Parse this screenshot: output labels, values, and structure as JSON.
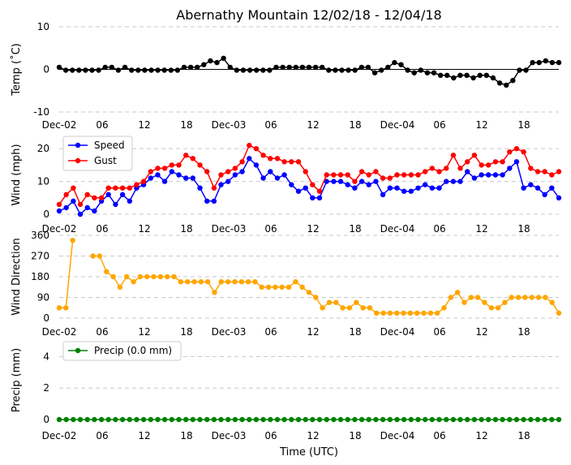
{
  "chart_data": [
    {
      "type": "line",
      "id": "temp",
      "title": "Abernathy Mountain 12/02/18 - 12/04/18",
      "ylabel": "Temp ($^\\circ$C)",
      "ylabel_display": "Temp (˚C)",
      "ylim": [
        -10,
        10
      ],
      "yticks": [
        -10,
        0,
        10
      ],
      "xtick_labels": [
        "Dec-02",
        "06",
        "12",
        "18",
        "Dec-03",
        "06",
        "12",
        "18",
        "Dec-04",
        "06",
        "12",
        "18"
      ],
      "zero_line": true,
      "series": [
        {
          "name": "Temperature",
          "color": "#000000",
          "values": [
            0.5,
            -0.2,
            -0.2,
            -0.2,
            -0.2,
            -0.2,
            -0.2,
            0.5,
            0.5,
            -0.2,
            0.5,
            -0.2,
            -0.2,
            -0.2,
            -0.2,
            -0.2,
            -0.2,
            -0.2,
            -0.2,
            0.5,
            0.5,
            0.5,
            1.1,
            2.0,
            1.6,
            2.6,
            0.5,
            -0.2,
            -0.2,
            -0.2,
            -0.2,
            -0.2,
            -0.2,
            0.5,
            0.5,
            0.5,
            0.5,
            0.5,
            0.5,
            0.5,
            0.5,
            -0.2,
            -0.2,
            -0.2,
            -0.2,
            -0.2,
            0.5,
            0.5,
            -0.8,
            -0.2,
            0.5,
            1.6,
            1.1,
            -0.2,
            -0.8,
            -0.2,
            -0.8,
            -0.8,
            -1.4,
            -1.4,
            -2.0,
            -1.4,
            -1.4,
            -2.0,
            -1.4,
            -1.4,
            -2.0,
            -3.2,
            -3.7,
            -2.6,
            -0.2,
            -0.2,
            1.6,
            1.6,
            2.0,
            1.6,
            1.6
          ]
        }
      ]
    },
    {
      "type": "line",
      "id": "wind",
      "ylabel": "Wind (mph)",
      "ylim": [
        0,
        24
      ],
      "yticks": [
        0,
        10,
        20
      ],
      "xtick_labels": [
        "Dec-02",
        "06",
        "12",
        "18",
        "Dec-03",
        "06",
        "12",
        "18",
        "Dec-04",
        "06",
        "12",
        "18"
      ],
      "legend": "upper-left",
      "series": [
        {
          "name": "Speed",
          "color": "#0000ff",
          "values": [
            1,
            2,
            4,
            0,
            2,
            1,
            4,
            6,
            3,
            6,
            4,
            8,
            9,
            11,
            12,
            10,
            13,
            12,
            11,
            11,
            8,
            4,
            4,
            9,
            10,
            12,
            13,
            17,
            15,
            11,
            13,
            11,
            12,
            9,
            7,
            8,
            5,
            5,
            10,
            10,
            10,
            9,
            8,
            10,
            9,
            10,
            6,
            8,
            8,
            7,
            7,
            8,
            9,
            8,
            8,
            10,
            10,
            10,
            13,
            11,
            12,
            12,
            12,
            12,
            14,
            16,
            8,
            9,
            8,
            6,
            8,
            5
          ]
        },
        {
          "name": "Gust",
          "color": "#ff0000",
          "values": [
            3,
            6,
            8,
            3,
            6,
            5,
            5,
            8,
            8,
            8,
            8,
            9,
            10,
            13,
            14,
            14,
            15,
            15,
            18,
            17,
            15,
            13,
            8,
            12,
            13,
            14,
            16,
            21,
            20,
            18,
            17,
            17,
            16,
            16,
            16,
            13,
            9,
            7,
            12,
            12,
            12,
            12,
            10,
            13,
            12,
            13,
            11,
            11,
            12,
            12,
            12,
            12,
            13,
            14,
            13,
            14,
            18,
            14,
            16,
            18,
            15,
            15,
            16,
            16,
            19,
            20,
            19,
            14,
            13,
            13,
            12,
            13
          ]
        }
      ]
    },
    {
      "type": "line",
      "id": "direction",
      "ylabel": "Wind Direction",
      "ylim": [
        0,
        360
      ],
      "yticks": [
        0,
        90,
        180,
        270,
        360
      ],
      "xtick_labels": [
        "Dec-02",
        "06",
        "12",
        "18",
        "Dec-03",
        "06",
        "12",
        "18",
        "Dec-04",
        "06",
        "12",
        "18"
      ],
      "series": [
        {
          "name": "Direction",
          "color": "#ffa500",
          "values": [
            45,
            45,
            338,
            null,
            null,
            270,
            270,
            202,
            180,
            135,
            180,
            158,
            180,
            180,
            180,
            180,
            180,
            180,
            158,
            158,
            158,
            158,
            158,
            112,
            158,
            158,
            158,
            158,
            158,
            158,
            135,
            135,
            135,
            135,
            135,
            158,
            135,
            112,
            90,
            45,
            68,
            68,
            45,
            45,
            68,
            45,
            45,
            22,
            22,
            22,
            22,
            22,
            22,
            22,
            22,
            22,
            22,
            45,
            90,
            112,
            68,
            90,
            90,
            68,
            45,
            45,
            68,
            90,
            90,
            90,
            90,
            90,
            90,
            68,
            22
          ]
        }
      ]
    },
    {
      "type": "line",
      "id": "precip",
      "ylabel": "Precip (mm)",
      "xlabel": "Time (UTC)",
      "ylim": [
        0,
        5
      ],
      "yticks": [
        0,
        2,
        4
      ],
      "xtick_labels": [
        "Dec-02",
        "06",
        "12",
        "18",
        "Dec-03",
        "06",
        "12",
        "18",
        "Dec-04",
        "06",
        "12",
        "18"
      ],
      "legend": "upper-left",
      "series": [
        {
          "name": "Precip (0.0 mm)",
          "color": "#008000",
          "values": [
            0,
            0,
            0,
            0,
            0,
            0,
            0,
            0,
            0,
            0,
            0,
            0,
            0,
            0,
            0,
            0,
            0,
            0,
            0,
            0,
            0,
            0,
            0,
            0,
            0,
            0,
            0,
            0,
            0,
            0,
            0,
            0,
            0,
            0,
            0,
            0,
            0,
            0,
            0,
            0,
            0,
            0,
            0,
            0,
            0,
            0,
            0,
            0,
            0,
            0,
            0,
            0,
            0,
            0,
            0,
            0,
            0,
            0,
            0,
            0,
            0,
            0,
            0,
            0,
            0,
            0,
            0,
            0,
            0,
            0,
            0,
            0
          ]
        }
      ]
    }
  ]
}
